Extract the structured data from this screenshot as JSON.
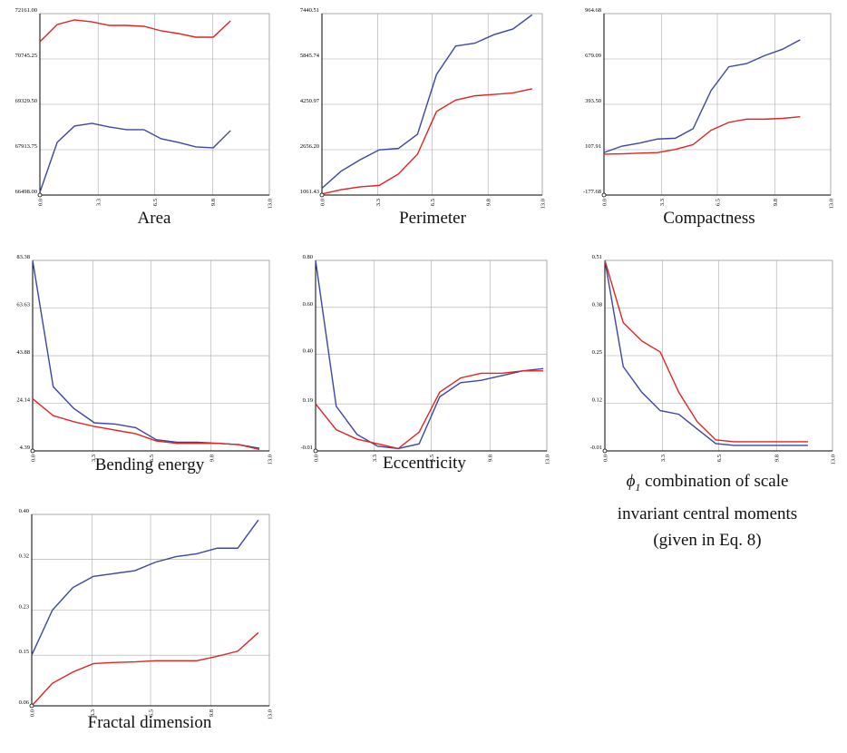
{
  "chart_data": [
    {
      "type": "line",
      "title": "Area",
      "x": [
        0,
        0.98,
        1.96,
        2.95,
        3.93,
        4.91,
        5.89,
        6.87,
        7.85,
        8.84,
        9.82,
        10.8
      ],
      "xlim": [
        0,
        13
      ],
      "xticks": [
        {
          "value": 0,
          "label": "0.0"
        },
        3.3,
        6.5,
        9.8,
        {
          "value": 13,
          "label": "13.0"
        }
      ],
      "ylim": [
        66498,
        72161
      ],
      "yticks": [
        {
          "value": 66498,
          "label": "66498.00"
        },
        {
          "value": 67913.75,
          "label": "67913.75"
        },
        {
          "value": 69329.5,
          "label": "69329.50"
        },
        {
          "value": 70745.25,
          "label": "70745.25"
        },
        {
          "value": 72161,
          "label": "72161.00"
        }
      ],
      "grid": true,
      "series": [
        {
          "color": "#3b47a0",
          "values": [
            66586,
            68143,
            68652,
            68737,
            68624,
            68539,
            68539,
            68255,
            68143,
            68001,
            67973,
            68510
          ]
        },
        {
          "color": "#e02424",
          "values": [
            71284,
            71821,
            71963,
            71906,
            71793,
            71793,
            71765,
            71623,
            71538,
            71425,
            71425,
            71935
          ]
        }
      ]
    },
    {
      "type": "line",
      "title": "Perimeter",
      "x": [
        0,
        1.13,
        2.25,
        3.38,
        4.51,
        5.64,
        6.76,
        7.89,
        9.02,
        10.15,
        11.27,
        12.4
      ],
      "xlim": [
        0,
        13
      ],
      "xticks": [
        {
          "value": 0,
          "label": "0.0"
        },
        3.3,
        6.5,
        9.8,
        {
          "value": 13,
          "label": "13.0"
        }
      ],
      "ylim": [
        1061.43,
        7440.51
      ],
      "yticks": [
        1061.43,
        {
          "value": 2656.2,
          "label": "2656.20"
        },
        4250.97,
        5845.74,
        7440.51
      ],
      "grid": true,
      "series": [
        {
          "color": "#3b47a0",
          "values": [
            1300,
            1900,
            2300,
            2650,
            2700,
            3200,
            5300,
            6300,
            6400,
            6700,
            6900,
            7400
          ]
        },
        {
          "color": "#e02424",
          "values": [
            1100,
            1250,
            1350,
            1400,
            1800,
            2500,
            4000,
            4400,
            4550,
            4600,
            4650,
            4800
          ]
        }
      ]
    },
    {
      "type": "line",
      "title": "Compactness",
      "x": [
        0,
        1.02,
        2.05,
        3.07,
        4.09,
        5.11,
        6.14,
        7.16,
        8.18,
        9.2,
        10.23,
        11.25
      ],
      "xlim": [
        0,
        13
      ],
      "xticks": [
        {
          "value": 0,
          "label": "0.0"
        },
        3.3,
        6.5,
        9.8,
        {
          "value": 13,
          "label": "13.0"
        }
      ],
      "ylim": [
        -177.68,
        964.68
      ],
      "yticks": [
        -177.68,
        107.91,
        {
          "value": 393.5,
          "label": "393.50"
        },
        679.09,
        964.68
      ],
      "grid": true,
      "series": [
        {
          "color": "#3b47a0",
          "values": [
            90,
            130,
            150,
            175,
            180,
            240,
            480,
            630,
            650,
            700,
            740,
            800
          ]
        },
        {
          "color": "#e02424",
          "values": [
            80,
            82,
            86,
            90,
            110,
            140,
            230,
            280,
            300,
            300,
            305,
            315
          ]
        }
      ]
    },
    {
      "type": "line",
      "title": "Bending energy",
      "x": [
        0,
        1.13,
        2.26,
        3.4,
        4.53,
        5.66,
        6.79,
        7.92,
        9.05,
        10.19,
        11.32,
        12.45
      ],
      "xlim": [
        0,
        13
      ],
      "xticks": [
        {
          "value": 0,
          "label": "0.0"
        },
        3.3,
        6.5,
        9.8,
        {
          "value": 13,
          "label": "13.0"
        }
      ],
      "ylim": [
        4.39,
        83.38
      ],
      "yticks": [
        4.39,
        24.14,
        43.88,
        63.63,
        83.38
      ],
      "grid": true,
      "series": [
        {
          "color": "#3b47a0",
          "values": [
            83.38,
            31,
            22,
            16,
            15.5,
            14,
            9,
            8,
            8,
            7.5,
            7,
            5.5
          ]
        },
        {
          "color": "#e02424",
          "values": [
            26,
            19,
            16.5,
            14.5,
            13,
            11.5,
            8.5,
            7.5,
            7.5,
            7.5,
            7,
            5
          ]
        }
      ]
    },
    {
      "type": "line",
      "title": "Eccentricity",
      "x": [
        0,
        1.16,
        2.33,
        3.49,
        4.65,
        5.82,
        6.98,
        8.15,
        9.31,
        10.47,
        11.64,
        12.8
      ],
      "xlim": [
        0,
        13
      ],
      "xticks": [
        {
          "value": 0,
          "label": "0.0"
        },
        3.3,
        6.5,
        9.8,
        {
          "value": 13,
          "label": "13.0"
        }
      ],
      "ylim": [
        -0.01,
        0.8
      ],
      "yticks": [
        -0.01,
        0.19,
        {
          "value": 0.4,
          "label": "0.40"
        },
        {
          "value": 0.6,
          "label": "0.60"
        },
        {
          "value": 0.8,
          "label": "0.80"
        }
      ],
      "grid": true,
      "series": [
        {
          "color": "#3b47a0",
          "values": [
            0.8,
            0.18,
            0.06,
            0.01,
            0.0,
            0.02,
            0.22,
            0.28,
            0.29,
            0.31,
            0.33,
            0.34
          ]
        },
        {
          "color": "#e02424",
          "values": [
            0.19,
            0.08,
            0.04,
            0.02,
            0.0,
            0.07,
            0.24,
            0.3,
            0.32,
            0.32,
            0.33,
            0.33
          ]
        }
      ]
    },
    {
      "type": "line",
      "title": "combination of scale invariant central moments (given in Eq. 8)",
      "title_symbol": "ϕ",
      "title_subscript": "1",
      "x": [
        0,
        1.05,
        2.11,
        3.16,
        4.22,
        5.27,
        6.33,
        7.38,
        8.44,
        9.49,
        10.55,
        11.6
      ],
      "xlim": [
        0,
        13
      ],
      "xticks": [
        {
          "value": 0,
          "label": "0.0"
        },
        3.3,
        6.5,
        9.8,
        {
          "value": 13,
          "label": "13.0"
        }
      ],
      "ylim": [
        -0.01,
        0.51
      ],
      "yticks": [
        -0.01,
        0.12,
        0.25,
        0.38,
        0.51
      ],
      "grid": true,
      "series": [
        {
          "color": "#3b47a0",
          "values": [
            0.51,
            0.22,
            0.15,
            0.1,
            0.09,
            0.05,
            0.01,
            0.005,
            0.005,
            0.005,
            0.005,
            0.005
          ]
        },
        {
          "color": "#e02424",
          "values": [
            0.51,
            0.34,
            0.29,
            0.26,
            0.15,
            0.07,
            0.02,
            0.015,
            0.015,
            0.015,
            0.015,
            0.015
          ]
        }
      ]
    },
    {
      "type": "line",
      "title": "Fractal dimension",
      "x": [
        0,
        1.13,
        2.25,
        3.38,
        4.51,
        5.64,
        6.76,
        7.89,
        9.02,
        10.15,
        11.27,
        12.4
      ],
      "xlim": [
        0,
        13
      ],
      "xticks": [
        {
          "value": 0,
          "label": "0.0"
        },
        3.3,
        6.5,
        9.8,
        {
          "value": 13,
          "label": "13.0"
        }
      ],
      "ylim": [
        0.06,
        0.4
      ],
      "yticks": [
        0.06,
        0.15,
        0.23,
        0.32,
        {
          "value": 0.4,
          "label": "0.40"
        }
      ],
      "grid": true,
      "series": [
        {
          "color": "#3b47a0",
          "values": [
            0.15,
            0.23,
            0.27,
            0.29,
            0.295,
            0.3,
            0.315,
            0.325,
            0.33,
            0.34,
            0.34,
            0.39
          ]
        },
        {
          "color": "#e02424",
          "values": [
            0.06,
            0.1,
            0.12,
            0.135,
            0.137,
            0.138,
            0.14,
            0.14,
            0.14,
            0.148,
            0.157,
            0.19
          ]
        }
      ]
    }
  ]
}
